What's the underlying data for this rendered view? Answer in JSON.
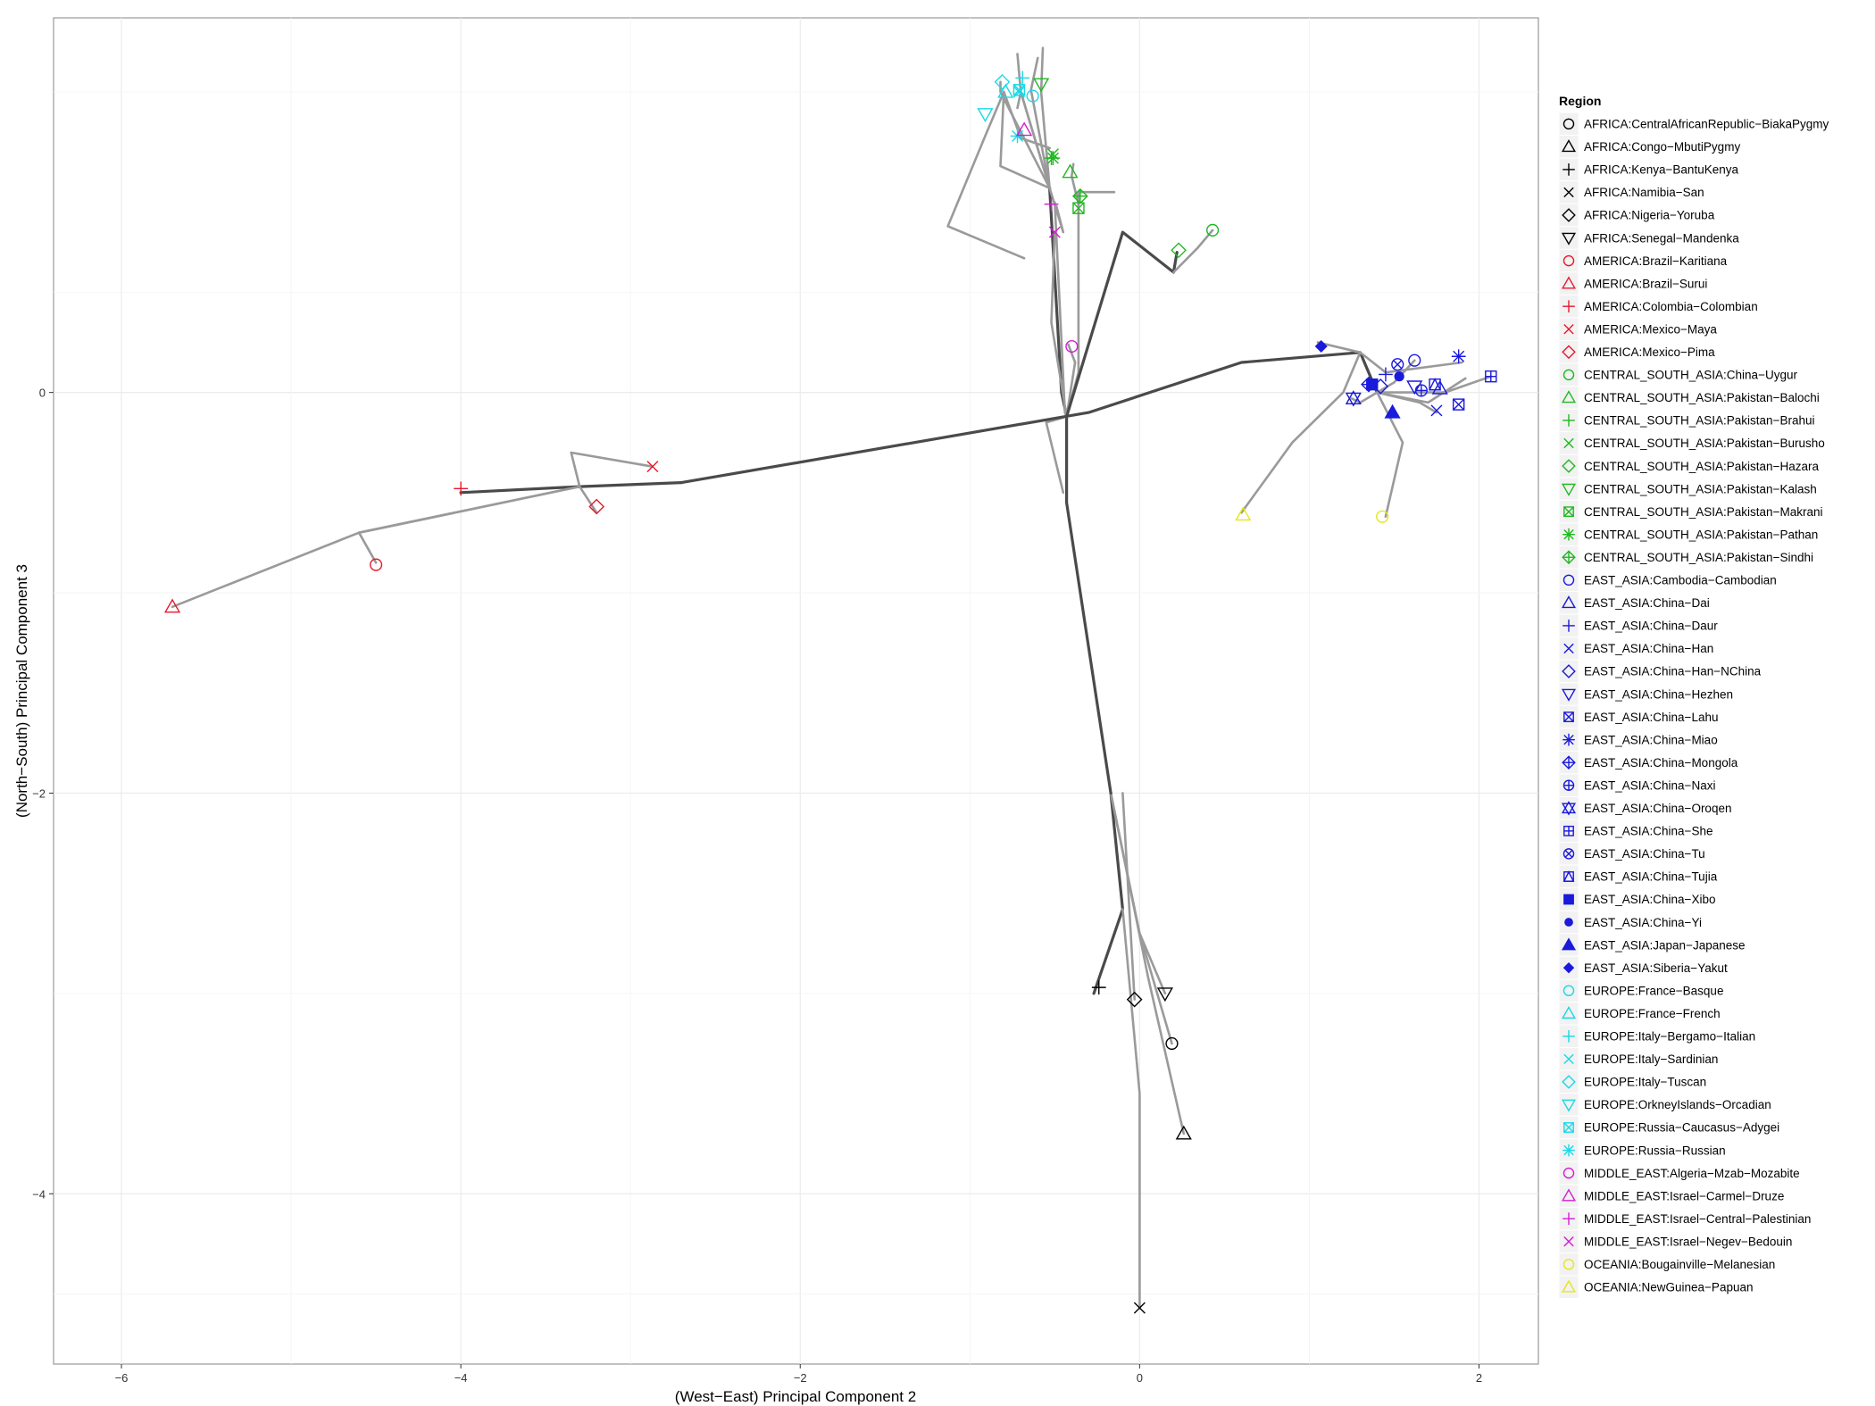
{
  "chart_data": {
    "type": "scatter",
    "title": "",
    "xlabel": "(West−East) Principal Component 2",
    "ylabel": "(North−South) Principal Component 3",
    "xlim": [
      -6.4,
      2.35
    ],
    "ylim": [
      -4.85,
      1.87
    ],
    "xticks": [
      -6,
      -4,
      -2,
      0,
      2
    ],
    "yticks": [
      -4,
      -2,
      0
    ],
    "xtick_labels": [
      "−6",
      "−4",
      "−2",
      "0",
      "2"
    ],
    "ytick_labels": [
      "−4",
      "−2",
      "0"
    ],
    "grid": true,
    "legend_position": "right",
    "legend_title": "Region",
    "tree_edges": [
      [
        [
          -0.27,
          -3.0
        ],
        [
          -0.1,
          -2.58
        ],
        [
          -0.17,
          -2.0
        ]
      ],
      [
        [
          -0.03,
          -3.03
        ],
        [
          -0.1,
          -2.0
        ]
      ],
      [
        [
          0.15,
          -3.0
        ],
        [
          0.0,
          -2.7
        ],
        [
          -0.17,
          -2.0
        ]
      ],
      [
        [
          0.19,
          -3.25
        ],
        [
          0.0,
          -2.7
        ]
      ],
      [
        [
          0.26,
          -3.7
        ],
        [
          0.05,
          -2.92
        ],
        [
          -0.17,
          -2.0
        ]
      ],
      [
        [
          0.0,
          -4.57
        ],
        [
          0.0,
          -3.5
        ],
        [
          -0.1,
          -2.58
        ]
      ],
      [
        [
          -0.17,
          -2.0
        ],
        [
          -0.43,
          -0.55
        ],
        [
          -0.43,
          -0.12
        ]
      ],
      [
        [
          -0.43,
          -0.12
        ],
        [
          -0.46,
          0.0
        ],
        [
          -0.53,
          1.02
        ]
      ],
      [
        [
          -0.53,
          1.02
        ],
        [
          -0.82,
          1.13
        ],
        [
          -0.8,
          1.5
        ]
      ],
      [
        [
          -0.8,
          1.5
        ],
        [
          -0.9,
          1.3
        ],
        [
          -1.13,
          0.83
        ],
        [
          -0.68,
          0.67
        ]
      ],
      [
        [
          -0.8,
          1.5
        ],
        [
          -0.7,
          1.27
        ],
        [
          -0.53,
          1.22
        ]
      ],
      [
        [
          -0.53,
          1.02
        ],
        [
          -0.64,
          1.51
        ],
        [
          -0.6,
          1.67
        ]
      ],
      [
        [
          -0.53,
          1.02
        ],
        [
          -0.7,
          1.5
        ],
        [
          -0.72,
          1.42
        ]
      ],
      [
        [
          -0.53,
          1.02
        ],
        [
          -0.82,
          1.5
        ],
        [
          -0.82,
          1.55
        ]
      ],
      [
        [
          -0.53,
          1.02
        ],
        [
          -0.7,
          1.5
        ],
        [
          -0.72,
          1.69
        ]
      ],
      [
        [
          -0.53,
          1.02
        ],
        [
          -0.58,
          1.5
        ],
        [
          -0.57,
          1.72
        ]
      ],
      [
        [
          -0.53,
          1.02
        ],
        [
          -0.45,
          0.8
        ],
        [
          -0.49,
          0.93
        ]
      ],
      [
        [
          -0.43,
          -0.12
        ],
        [
          -0.38,
          0.15
        ],
        [
          -0.42,
          0.24
        ]
      ],
      [
        [
          -0.43,
          -0.12
        ],
        [
          -0.52,
          0.35
        ],
        [
          -0.5,
          0.8
        ]
      ],
      [
        [
          -0.43,
          -0.12
        ],
        [
          -0.44,
          -0.1
        ],
        [
          -0.5,
          0.95
        ]
      ],
      [
        [
          -0.43,
          -0.12
        ],
        [
          -0.55,
          -0.15
        ],
        [
          -0.45,
          -0.5
        ]
      ],
      [
        [
          -0.43,
          -0.12
        ],
        [
          -0.36,
          0.1
        ],
        [
          -0.36,
          1.0
        ],
        [
          -0.15,
          1.0
        ]
      ],
      [
        [
          -0.36,
          1.0
        ],
        [
          -0.36,
          0.94
        ]
      ],
      [
        [
          -0.36,
          0.94
        ],
        [
          -0.4,
          1.08
        ],
        [
          -0.39,
          1.14
        ]
      ],
      [
        [
          -0.43,
          -0.12
        ],
        [
          -0.1,
          0.8
        ],
        [
          0.2,
          0.6
        ],
        [
          0.22,
          0.7
        ]
      ],
      [
        [
          0.2,
          0.6
        ],
        [
          0.34,
          0.72
        ],
        [
          0.43,
          0.81
        ]
      ],
      [
        [
          -2.7,
          -0.45
        ],
        [
          -0.3,
          -0.1
        ],
        [
          0.6,
          0.15
        ],
        [
          1.3,
          0.2
        ],
        [
          1.4,
          0.0
        ]
      ],
      [
        [
          -2.7,
          -0.45
        ],
        [
          -3.3,
          -0.47
        ],
        [
          -4.0,
          -0.5
        ]
      ],
      [
        [
          -3.3,
          -0.47
        ],
        [
          -3.2,
          -0.6
        ]
      ],
      [
        [
          -3.3,
          -0.47
        ],
        [
          -3.35,
          -0.3
        ],
        [
          -2.87,
          -0.37
        ]
      ],
      [
        [
          -3.3,
          -0.47
        ],
        [
          -4.6,
          -0.7
        ],
        [
          -4.5,
          -0.85
        ]
      ],
      [
        [
          -3.3,
          -0.47
        ],
        [
          -4.6,
          -0.7
        ],
        [
          -5.7,
          -1.07
        ]
      ],
      [
        [
          1.3,
          0.2
        ],
        [
          1.05,
          0.25
        ]
      ],
      [
        [
          1.3,
          0.2
        ],
        [
          1.45,
          0.1
        ],
        [
          1.9,
          0.15
        ]
      ],
      [
        [
          1.3,
          0.2
        ],
        [
          1.2,
          0.0
        ],
        [
          0.9,
          -0.25
        ],
        [
          0.6,
          -0.6
        ]
      ],
      [
        [
          1.4,
          0.0
        ],
        [
          1.55,
          -0.25
        ],
        [
          1.45,
          -0.62
        ]
      ],
      [
        [
          1.4,
          0.0
        ],
        [
          1.7,
          -0.05
        ],
        [
          1.92,
          0.07
        ]
      ],
      [
        [
          1.4,
          0.0
        ],
        [
          1.65,
          -0.05
        ],
        [
          1.75,
          -0.1
        ]
      ],
      [
        [
          1.4,
          0.0
        ],
        [
          1.3,
          -0.05
        ],
        [
          1.25,
          -0.03
        ]
      ],
      [
        [
          1.4,
          0.0
        ],
        [
          1.5,
          0.05
        ],
        [
          1.62,
          0.16
        ]
      ],
      [
        [
          1.4,
          0.0
        ],
        [
          1.8,
          0.0
        ],
        [
          2.07,
          0.08
        ]
      ]
    ],
    "legend_items": [
      {
        "label": "AFRICA:CentralAfricanRepublic−BiakaPygmy",
        "shape": "circle",
        "color": "#000000"
      },
      {
        "label": "AFRICA:Congo−MbutiPygmy",
        "shape": "triangle",
        "color": "#000000"
      },
      {
        "label": "AFRICA:Kenya−BantuKenya",
        "shape": "plus",
        "color": "#000000"
      },
      {
        "label": "AFRICA:Namibia−San",
        "shape": "cross",
        "color": "#000000"
      },
      {
        "label": "AFRICA:Nigeria−Yoruba",
        "shape": "diamond",
        "color": "#000000"
      },
      {
        "label": "AFRICA:Senegal−Mandenka",
        "shape": "triangle-down",
        "color": "#000000"
      },
      {
        "label": "AMERICA:Brazil−Karitiana",
        "shape": "circle",
        "color": "#e8192c"
      },
      {
        "label": "AMERICA:Brazil−Surui",
        "shape": "triangle",
        "color": "#e8192c"
      },
      {
        "label": "AMERICA:Colombia−Colombian",
        "shape": "plus",
        "color": "#e8192c"
      },
      {
        "label": "AMERICA:Mexico−Maya",
        "shape": "cross",
        "color": "#e8192c"
      },
      {
        "label": "AMERICA:Mexico−Pima",
        "shape": "diamond",
        "color": "#e8192c"
      },
      {
        "label": "CENTRAL_SOUTH_ASIA:China−Uygur",
        "shape": "circle",
        "color": "#1fb81f"
      },
      {
        "label": "CENTRAL_SOUTH_ASIA:Pakistan−Balochi",
        "shape": "triangle",
        "color": "#1fb81f"
      },
      {
        "label": "CENTRAL_SOUTH_ASIA:Pakistan−Brahui",
        "shape": "plus",
        "color": "#1fb81f"
      },
      {
        "label": "CENTRAL_SOUTH_ASIA:Pakistan−Burusho",
        "shape": "cross",
        "color": "#1fb81f"
      },
      {
        "label": "CENTRAL_SOUTH_ASIA:Pakistan−Hazara",
        "shape": "diamond",
        "color": "#1fb81f"
      },
      {
        "label": "CENTRAL_SOUTH_ASIA:Pakistan−Kalash",
        "shape": "triangle-down",
        "color": "#1fb81f"
      },
      {
        "label": "CENTRAL_SOUTH_ASIA:Pakistan−Makrani",
        "shape": "square-cross",
        "color": "#1fb81f"
      },
      {
        "label": "CENTRAL_SOUTH_ASIA:Pakistan−Pathan",
        "shape": "asterisk",
        "color": "#1fb81f"
      },
      {
        "label": "CENTRAL_SOUTH_ASIA:Pakistan−Sindhi",
        "shape": "diamond-plus",
        "color": "#1fb81f"
      },
      {
        "label": "EAST_ASIA:Cambodia−Cambodian",
        "shape": "circle",
        "color": "#1a1adc"
      },
      {
        "label": "EAST_ASIA:China−Dai",
        "shape": "triangle",
        "color": "#1a1adc"
      },
      {
        "label": "EAST_ASIA:China−Daur",
        "shape": "plus",
        "color": "#1a1adc"
      },
      {
        "label": "EAST_ASIA:China−Han",
        "shape": "cross",
        "color": "#1a1adc"
      },
      {
        "label": "EAST_ASIA:China−Han−NChina",
        "shape": "diamond",
        "color": "#1a1adc"
      },
      {
        "label": "EAST_ASIA:China−Hezhen",
        "shape": "triangle-down",
        "color": "#1a1adc"
      },
      {
        "label": "EAST_ASIA:China−Lahu",
        "shape": "square-cross",
        "color": "#1a1adc"
      },
      {
        "label": "EAST_ASIA:China−Miao",
        "shape": "asterisk",
        "color": "#1a1adc"
      },
      {
        "label": "EAST_ASIA:China−Mongola",
        "shape": "diamond-plus",
        "color": "#1a1adc"
      },
      {
        "label": "EAST_ASIA:China−Naxi",
        "shape": "circle-plus",
        "color": "#1a1adc"
      },
      {
        "label": "EAST_ASIA:China−Oroqen",
        "shape": "star-david",
        "color": "#1a1adc"
      },
      {
        "label": "EAST_ASIA:China−She",
        "shape": "square-plus",
        "color": "#1a1adc"
      },
      {
        "label": "EAST_ASIA:China−Tu",
        "shape": "circle-cross",
        "color": "#1a1adc"
      },
      {
        "label": "EAST_ASIA:China−Tujia",
        "shape": "square-triangle",
        "color": "#1a1adc"
      },
      {
        "label": "EAST_ASIA:China−Xibo",
        "shape": "filled-square",
        "color": "#1a1adc"
      },
      {
        "label": "EAST_ASIA:China−Yi",
        "shape": "filled-circle",
        "color": "#1a1adc"
      },
      {
        "label": "EAST_ASIA:Japan−Japanese",
        "shape": "filled-triangle",
        "color": "#1a1adc"
      },
      {
        "label": "EAST_ASIA:Siberia−Yakut",
        "shape": "filled-diamond",
        "color": "#1a1adc"
      },
      {
        "label": "EUROPE:France−Basque",
        "shape": "circle",
        "color": "#17d9e6"
      },
      {
        "label": "EUROPE:France−French",
        "shape": "triangle",
        "color": "#17d9e6"
      },
      {
        "label": "EUROPE:Italy−Bergamo−Italian",
        "shape": "plus",
        "color": "#17d9e6"
      },
      {
        "label": "EUROPE:Italy−Sardinian",
        "shape": "cross",
        "color": "#17d9e6"
      },
      {
        "label": "EUROPE:Italy−Tuscan",
        "shape": "diamond",
        "color": "#17d9e6"
      },
      {
        "label": "EUROPE:OrkneyIslands−Orcadian",
        "shape": "triangle-down",
        "color": "#17d9e6"
      },
      {
        "label": "EUROPE:Russia−Caucasus−Adygei",
        "shape": "square-cross",
        "color": "#17d9e6"
      },
      {
        "label": "EUROPE:Russia−Russian",
        "shape": "asterisk",
        "color": "#17d9e6"
      },
      {
        "label": "MIDDLE_EAST:Algeria−Mzab−Mozabite",
        "shape": "circle",
        "color": "#d41cd4"
      },
      {
        "label": "MIDDLE_EAST:Israel−Carmel−Druze",
        "shape": "triangle",
        "color": "#d41cd4"
      },
      {
        "label": "MIDDLE_EAST:Israel−Central−Palestinian",
        "shape": "plus",
        "color": "#d41cd4"
      },
      {
        "label": "MIDDLE_EAST:Israel−Negev−Bedouin",
        "shape": "cross",
        "color": "#d41cd4"
      },
      {
        "label": "OCEANIA:Bougainville−Melanesian",
        "shape": "circle",
        "color": "#e6e61a"
      },
      {
        "label": "OCEANIA:NewGuinea−Papuan",
        "shape": "triangle",
        "color": "#e6e61a"
      }
    ],
    "points": [
      {
        "x": 0.19,
        "y": -3.25,
        "group": 0
      },
      {
        "x": 0.26,
        "y": -3.7,
        "group": 1
      },
      {
        "x": -0.24,
        "y": -2.97,
        "group": 2
      },
      {
        "x": 0.0,
        "y": -4.57,
        "group": 3
      },
      {
        "x": -0.03,
        "y": -3.03,
        "group": 4
      },
      {
        "x": 0.15,
        "y": -3.0,
        "group": 5
      },
      {
        "x": -4.5,
        "y": -0.86,
        "group": 6
      },
      {
        "x": -5.7,
        "y": -1.07,
        "group": 7
      },
      {
        "x": -4.0,
        "y": -0.48,
        "group": 8
      },
      {
        "x": -2.87,
        "y": -0.37,
        "group": 9
      },
      {
        "x": -3.2,
        "y": -0.57,
        "group": 10
      },
      {
        "x": 0.43,
        "y": 0.81,
        "group": 11
      },
      {
        "x": -0.41,
        "y": 1.1,
        "group": 12
      },
      {
        "x": -0.52,
        "y": 1.17,
        "group": 13
      },
      {
        "x": -0.51,
        "y": 1.19,
        "group": 14
      },
      {
        "x": 0.23,
        "y": 0.71,
        "group": 15
      },
      {
        "x": -0.58,
        "y": 1.54,
        "group": 16
      },
      {
        "x": -0.36,
        "y": 0.92,
        "group": 17
      },
      {
        "x": -0.51,
        "y": 1.17,
        "group": 18
      },
      {
        "x": -0.35,
        "y": 0.98,
        "group": 19
      },
      {
        "x": 1.62,
        "y": 0.16,
        "group": 20
      },
      {
        "x": 1.77,
        "y": 0.02,
        "group": 21
      },
      {
        "x": 1.45,
        "y": 0.09,
        "group": 22
      },
      {
        "x": 1.75,
        "y": -0.09,
        "group": 23
      },
      {
        "x": 1.42,
        "y": 0.03,
        "group": 24
      },
      {
        "x": 1.62,
        "y": 0.03,
        "group": 25
      },
      {
        "x": 1.88,
        "y": -0.06,
        "group": 26
      },
      {
        "x": 1.88,
        "y": 0.18,
        "group": 27
      },
      {
        "x": 1.35,
        "y": 0.04,
        "group": 28
      },
      {
        "x": 1.66,
        "y": 0.01,
        "group": 29
      },
      {
        "x": 1.26,
        "y": -0.03,
        "group": 30
      },
      {
        "x": 2.07,
        "y": 0.08,
        "group": 31
      },
      {
        "x": 1.52,
        "y": 0.14,
        "group": 32
      },
      {
        "x": 1.74,
        "y": 0.04,
        "group": 33
      },
      {
        "x": 1.37,
        "y": 0.04,
        "group": 34
      },
      {
        "x": 1.53,
        "y": 0.08,
        "group": 35
      },
      {
        "x": 1.49,
        "y": -0.1,
        "group": 36
      },
      {
        "x": 1.07,
        "y": 0.23,
        "group": 37
      },
      {
        "x": -0.63,
        "y": 1.48,
        "group": 38
      },
      {
        "x": -0.79,
        "y": 1.5,
        "group": 39
      },
      {
        "x": -0.69,
        "y": 1.57,
        "group": 40
      },
      {
        "x": -0.71,
        "y": 1.5,
        "group": 41
      },
      {
        "x": -0.81,
        "y": 1.55,
        "group": 42
      },
      {
        "x": -0.91,
        "y": 1.39,
        "group": 43
      },
      {
        "x": -0.71,
        "y": 1.51,
        "group": 44
      },
      {
        "x": -0.72,
        "y": 1.28,
        "group": 45
      },
      {
        "x": -0.4,
        "y": 0.23,
        "group": 46
      },
      {
        "x": -0.68,
        "y": 1.31,
        "group": 47
      },
      {
        "x": -0.52,
        "y": 0.94,
        "group": 48
      },
      {
        "x": -0.5,
        "y": 0.8,
        "group": 49
      },
      {
        "x": 1.43,
        "y": -0.62,
        "group": 50
      },
      {
        "x": 0.61,
        "y": -0.61,
        "group": 51
      }
    ]
  }
}
